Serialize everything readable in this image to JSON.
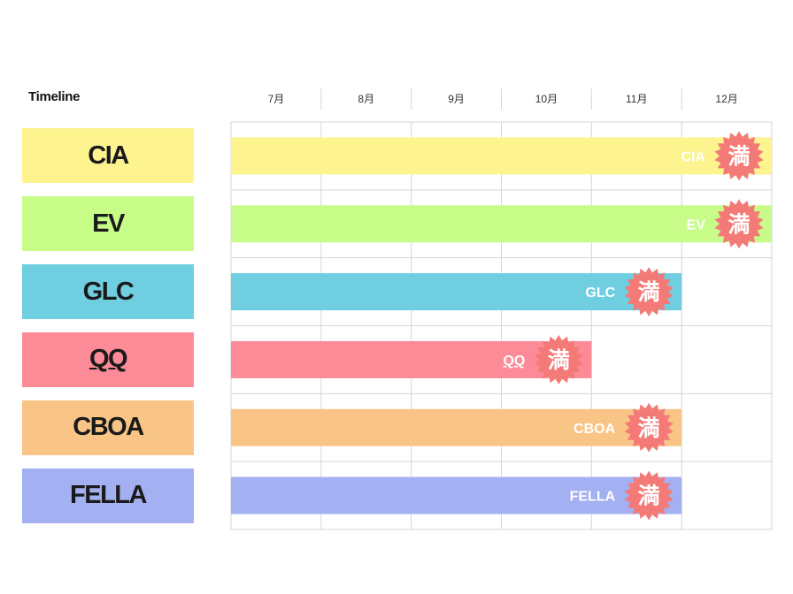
{
  "header": {
    "title": "Timeline"
  },
  "chart_data": {
    "type": "gantt",
    "title": "Timeline",
    "months": [
      "7月",
      "8月",
      "9月",
      "10月",
      "11月",
      "12月"
    ],
    "badge_label": "満",
    "colors": {
      "grid": "#d6d6d6",
      "badge": "#f47a78",
      "month_text": "#333333"
    },
    "series": [
      {
        "name": "CIA",
        "start_month": 0,
        "end_month": 6,
        "color": "#fdf48f",
        "underline": false
      },
      {
        "name": "EV",
        "start_month": 0,
        "end_month": 6,
        "color": "#c7fc88",
        "underline": false
      },
      {
        "name": "GLC",
        "start_month": 0,
        "end_month": 5,
        "color": "#6fcfe0",
        "underline": false
      },
      {
        "name": "QQ",
        "start_month": 0,
        "end_month": 4,
        "color": "#fd8b97",
        "underline": true
      },
      {
        "name": "CBOA",
        "start_month": 0,
        "end_month": 5,
        "color": "#f8c587",
        "underline": false
      },
      {
        "name": "FELLA",
        "start_month": 0,
        "end_month": 5,
        "color": "#a3b0f1",
        "underline": false
      }
    ]
  }
}
